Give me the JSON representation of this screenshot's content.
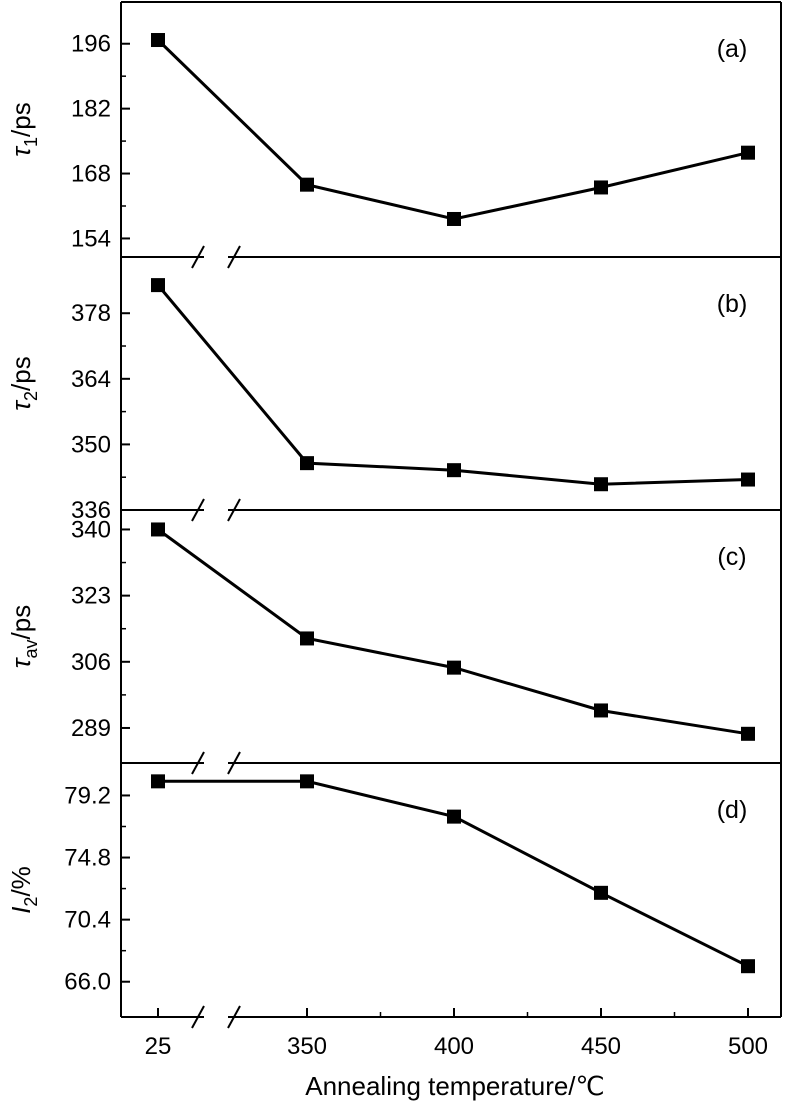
{
  "figure": {
    "xlabel": "Annealing temperature/℃",
    "x_tick_labels": [
      "25",
      "350",
      "400",
      "450",
      "500"
    ],
    "axis_break_on_x": true,
    "line_color": "#000000",
    "marker": "filled-square"
  },
  "chart_data": [
    {
      "type": "line",
      "tag": "(a)",
      "ylabel_symbol": "τ",
      "ylabel_subscript": "1",
      "ylabel_unit": "/ps",
      "categories": [
        "25",
        "350",
        "400",
        "450",
        "500"
      ],
      "values": [
        196.8,
        165.6,
        158.2,
        165.0,
        172.5
      ],
      "yticks": [
        "154",
        "168",
        "182",
        "196"
      ],
      "ylim": [
        150,
        205
      ]
    },
    {
      "type": "line",
      "tag": "(b)",
      "ylabel_symbol": "τ",
      "ylabel_subscript": "2",
      "ylabel_unit": "/ps",
      "categories": [
        "25",
        "350",
        "400",
        "450",
        "500"
      ],
      "values": [
        384.0,
        346.0,
        344.5,
        341.5,
        342.5
      ],
      "yticks": [
        "336",
        "350",
        "364",
        "378"
      ],
      "ylim": [
        336,
        390
      ]
    },
    {
      "type": "line",
      "tag": "(c)",
      "ylabel_symbol": "τ",
      "ylabel_subscript": "av",
      "ylabel_unit": "/ps",
      "categories": [
        "25",
        "350",
        "400",
        "450",
        "500"
      ],
      "values": [
        340.0,
        312.0,
        304.5,
        293.5,
        287.5
      ],
      "yticks": [
        "289",
        "306",
        "323",
        "340"
      ],
      "ylim": [
        280,
        345
      ]
    },
    {
      "type": "line",
      "tag": "(d)",
      "ylabel_symbol": "I",
      "ylabel_subscript": "2",
      "ylabel_unit": "/%",
      "categories": [
        "25",
        "350",
        "400",
        "450",
        "500"
      ],
      "values": [
        80.2,
        80.2,
        77.7,
        72.3,
        67.1
      ],
      "yticks": [
        "66.0",
        "70.4",
        "74.8",
        "79.2"
      ],
      "ylim": [
        63.5,
        81.5
      ]
    }
  ]
}
